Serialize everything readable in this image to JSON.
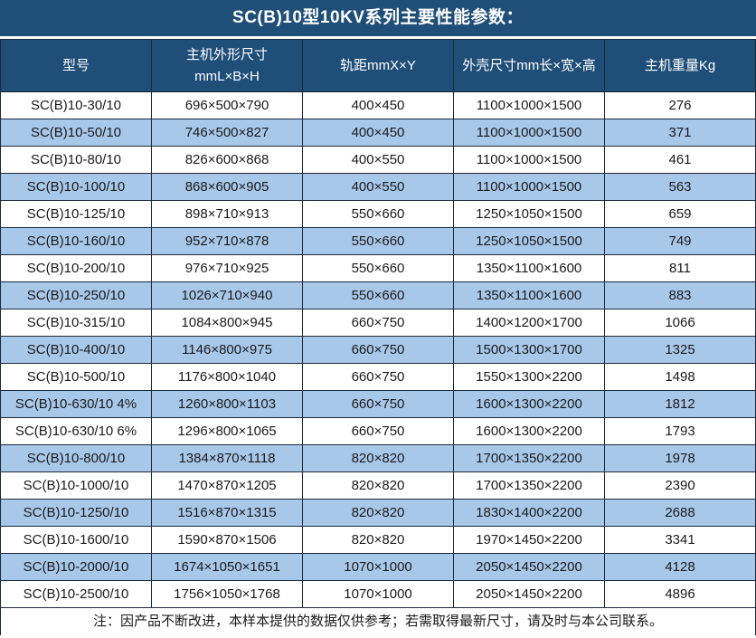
{
  "title": "SC(B)10型10KV系列主要性能参数：",
  "colors": {
    "header_bg": "#1F4E79",
    "header_text": "#FFFFFF",
    "stripe_bg": "#A8C8EA",
    "border": "#1B2838",
    "text": "#1A1A1A"
  },
  "table": {
    "headers": [
      {
        "lines": [
          "型号"
        ]
      },
      {
        "lines": [
          "主机外形尺寸",
          "mmL×B×H"
        ]
      },
      {
        "lines": [
          "轨距mmX×Y"
        ]
      },
      {
        "lines": [
          "外壳尺寸mm长×宽×高"
        ]
      },
      {
        "lines": [
          "主机重量Kg"
        ]
      }
    ],
    "rows": [
      {
        "model": "SC(B)10-30/10",
        "dimensions": "696×500×790",
        "rail_gauge": "400×450",
        "shell_size": "1100×1000×1500",
        "weight": "276"
      },
      {
        "model": "SC(B)10-50/10",
        "dimensions": "746×500×827",
        "rail_gauge": "400×450",
        "shell_size": "1100×1000×1500",
        "weight": "371"
      },
      {
        "model": "SC(B)10-80/10",
        "dimensions": "826×600×868",
        "rail_gauge": "400×550",
        "shell_size": "1100×1000×1500",
        "weight": "461"
      },
      {
        "model": "SC(B)10-100/10",
        "dimensions": "868×600×905",
        "rail_gauge": "400×550",
        "shell_size": "1100×1000×1500",
        "weight": "563"
      },
      {
        "model": "SC(B)10-125/10",
        "dimensions": "898×710×913",
        "rail_gauge": "550×660",
        "shell_size": "1250×1050×1500",
        "weight": "659"
      },
      {
        "model": "SC(B)10-160/10",
        "dimensions": "952×710×878",
        "rail_gauge": "550×660",
        "shell_size": "1250×1050×1500",
        "weight": "749"
      },
      {
        "model": "SC(B)10-200/10",
        "dimensions": "976×710×925",
        "rail_gauge": "550×660",
        "shell_size": "1350×1100×1600",
        "weight": "811"
      },
      {
        "model": "SC(B)10-250/10",
        "dimensions": "1026×710×940",
        "rail_gauge": "550×660",
        "shell_size": "1350×1100×1600",
        "weight": "883"
      },
      {
        "model": "SC(B)10-315/10",
        "dimensions": "1084×800×945",
        "rail_gauge": "660×750",
        "shell_size": "1400×1200×1700",
        "weight": "1066"
      },
      {
        "model": "SC(B)10-400/10",
        "dimensions": "1146×800×975",
        "rail_gauge": "660×750",
        "shell_size": "1500×1300×1700",
        "weight": "1325"
      },
      {
        "model": "SC(B)10-500/10",
        "dimensions": "1176×800×1040",
        "rail_gauge": "660×750",
        "shell_size": "1550×1300×2200",
        "weight": "1498"
      },
      {
        "model": "SC(B)10-630/10 4%",
        "dimensions": "1260×800×1103",
        "rail_gauge": "660×750",
        "shell_size": "1600×1300×2200",
        "weight": "1812"
      },
      {
        "model": "SC(B)10-630/10 6%",
        "dimensions": "1296×800×1065",
        "rail_gauge": "660×750",
        "shell_size": "1600×1300×2200",
        "weight": "1793"
      },
      {
        "model": "SC(B)10-800/10",
        "dimensions": "1384×870×1118",
        "rail_gauge": "820×820",
        "shell_size": "1700×1350×2200",
        "weight": "1978"
      },
      {
        "model": "SC(B)10-1000/10",
        "dimensions": "1470×870×1205",
        "rail_gauge": "820×820",
        "shell_size": "1700×1350×2200",
        "weight": "2390"
      },
      {
        "model": "SC(B)10-1250/10",
        "dimensions": "1516×870×1315",
        "rail_gauge": "820×820",
        "shell_size": "1830×1400×2200",
        "weight": "2688"
      },
      {
        "model": "SC(B)10-1600/10",
        "dimensions": "1590×870×1506",
        "rail_gauge": "820×820",
        "shell_size": "1970×1450×2200",
        "weight": "3341"
      },
      {
        "model": "SC(B)10-2000/10",
        "dimensions": "1674×1050×1651",
        "rail_gauge": "1070×1000",
        "shell_size": "2050×1450×2200",
        "weight": "4128"
      },
      {
        "model": "SC(B)10-2500/10",
        "dimensions": "1756×1050×1768",
        "rail_gauge": "1070×1000",
        "shell_size": "2050×1450×2200",
        "weight": "4896"
      }
    ]
  },
  "footer": {
    "note": "注：因产品不断改进，本样本提供的数据仅供参考；若需取得最新尺寸，请及时与本公司联系。"
  }
}
